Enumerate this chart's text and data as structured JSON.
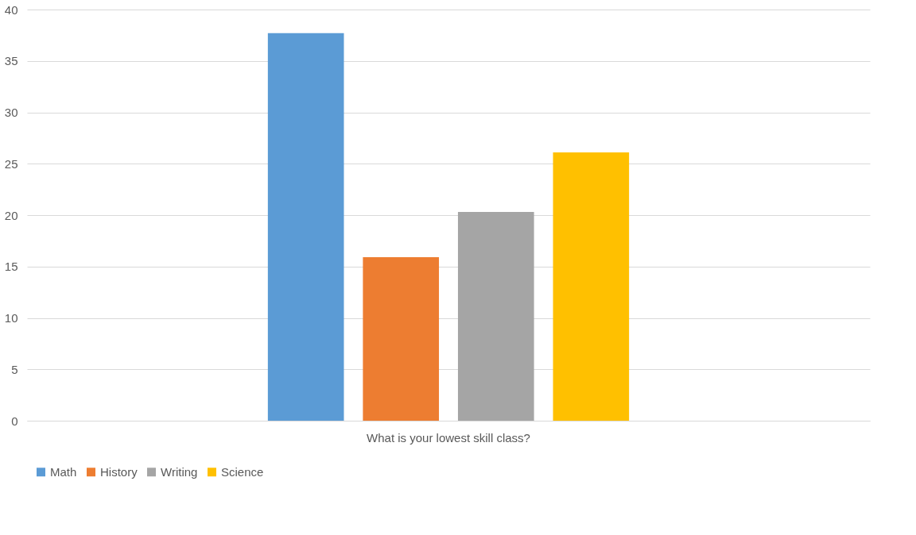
{
  "chart_data": {
    "type": "bar",
    "categories": [
      "What is your lowest skill class?"
    ],
    "series": [
      {
        "name": "Math",
        "color": "#5b9bd5",
        "values": [
          37.7
        ]
      },
      {
        "name": "History",
        "color": "#ed7d31",
        "values": [
          15.9
        ]
      },
      {
        "name": "Writing",
        "color": "#a5a5a5",
        "values": [
          20.3
        ]
      },
      {
        "name": "Science",
        "color": "#ffc000",
        "values": [
          26.1
        ]
      }
    ],
    "ylim": [
      0,
      40
    ],
    "yticks": [
      0,
      5,
      10,
      15,
      20,
      25,
      30,
      35,
      40
    ],
    "grid": "y",
    "legend": "bottom"
  }
}
